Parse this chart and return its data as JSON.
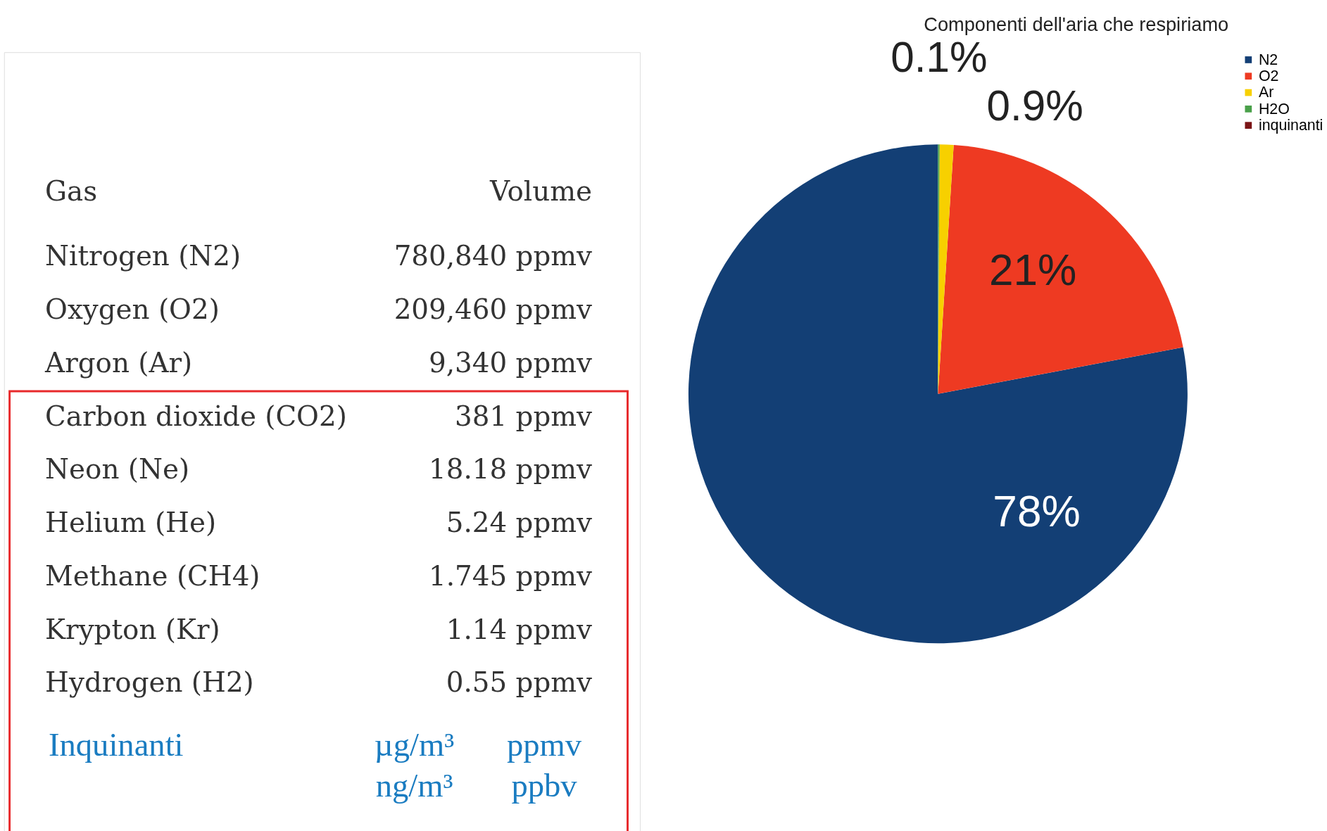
{
  "chart_data": [
    {
      "type": "other",
      "annotations": [
        "Gas",
        "Volume",
        "Nitrogen (N2)",
        "780,840 ppmv",
        "Oxygen (O2)",
        "209,460 ppmv",
        "Argon (Ar)",
        "9,340 ppmv",
        "Carbon dioxide (CO2)",
        "381 ppmv",
        "Neon (Ne)",
        "18.18 ppmv",
        "Helium (He)",
        "5.24 ppmv",
        "Methane (CH4)",
        "1.745 ppmv",
        "Krypton (Kr)",
        "1.14 ppmv",
        "Hydrogen (H2)",
        "0.55 ppmv",
        "Inquinanti",
        "µg/m³",
        "ppmv",
        "ng/m³",
        "ppbv"
      ]
    },
    {
      "type": "pie",
      "title": "Componenti dell'aria che respiriamo",
      "categories": [
        "N2",
        "O2",
        "Ar",
        "H2O",
        "inquinanti"
      ],
      "values": [
        78,
        21,
        0.9,
        0.1,
        0
      ],
      "colors": [
        "#133f75",
        "#ee3a22",
        "#f7d000",
        "#4aa04a",
        "#7a1416"
      ],
      "value_labels": [
        "78%",
        "21%",
        "0.9%",
        "0.1%",
        null
      ],
      "legend": "right"
    }
  ]
}
